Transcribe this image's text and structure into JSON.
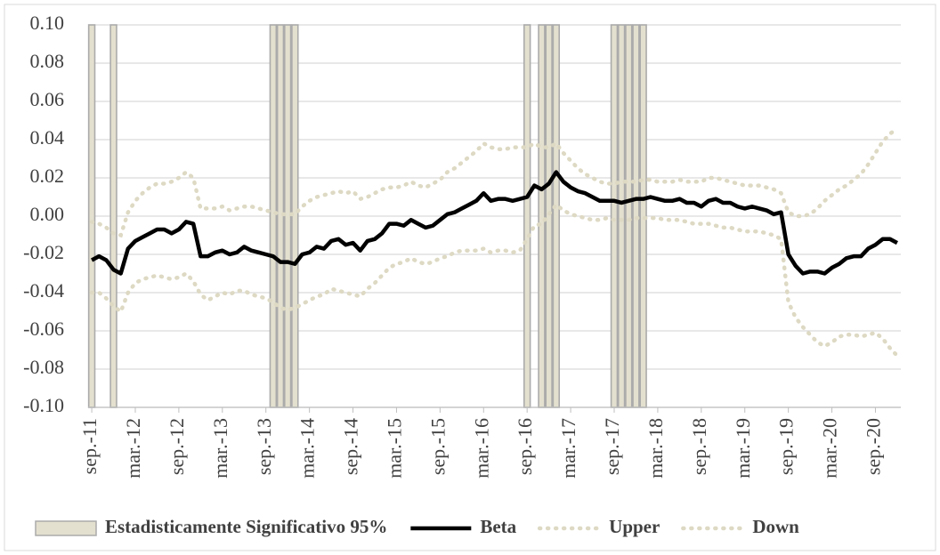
{
  "chart_data": {
    "type": "line",
    "categories": [
      "sep.-11",
      null,
      null,
      null,
      null,
      null,
      "mar.-12",
      null,
      null,
      null,
      null,
      null,
      "sep.-12",
      null,
      null,
      null,
      null,
      null,
      "mar.-13",
      null,
      null,
      null,
      null,
      null,
      "sep.-13",
      null,
      null,
      null,
      null,
      null,
      "mar.-14",
      null,
      null,
      null,
      null,
      null,
      "sep.-14",
      null,
      null,
      null,
      null,
      null,
      "mar.-15",
      null,
      null,
      null,
      null,
      null,
      "sep.-15",
      null,
      null,
      null,
      null,
      null,
      "mar.-16",
      null,
      null,
      null,
      null,
      null,
      "sep.-16",
      null,
      null,
      null,
      null,
      null,
      "mar.-17",
      null,
      null,
      null,
      null,
      null,
      "sep.-17",
      null,
      null,
      null,
      null,
      null,
      "mar.-18",
      null,
      null,
      null,
      null,
      null,
      "sep.-18",
      null,
      null,
      null,
      null,
      null,
      "mar.-19",
      null,
      null,
      null,
      null,
      null,
      "sep.-19",
      null,
      null,
      null,
      null,
      null,
      "mar.-20",
      null,
      null,
      null,
      null,
      null,
      "sep.-20",
      null,
      null,
      null
    ],
    "series": [
      {
        "name": "Estadisticamente Significativo 95%",
        "type": "bar",
        "color": "#e4e0cf",
        "stroke": "#ababab",
        "values": [
          0.1,
          null,
          null,
          0.1,
          null,
          null,
          null,
          null,
          null,
          null,
          null,
          null,
          null,
          null,
          null,
          null,
          null,
          null,
          null,
          null,
          null,
          null,
          null,
          null,
          null,
          0.1,
          0.1,
          0.1,
          0.1,
          null,
          null,
          null,
          null,
          null,
          null,
          null,
          null,
          null,
          null,
          null,
          null,
          null,
          null,
          null,
          null,
          null,
          null,
          null,
          null,
          null,
          null,
          null,
          null,
          null,
          null,
          null,
          null,
          null,
          null,
          null,
          0.1,
          null,
          0.1,
          0.1,
          0.1,
          null,
          null,
          null,
          null,
          null,
          null,
          null,
          0.1,
          0.1,
          0.1,
          0.1,
          0.1,
          null,
          null,
          null,
          null,
          null,
          null,
          null,
          null,
          null,
          null,
          null,
          null,
          null,
          null,
          null,
          null,
          null,
          null,
          null,
          null,
          null,
          null,
          null,
          null,
          null,
          null,
          null,
          null,
          null,
          null,
          null,
          null,
          null,
          null,
          null
        ]
      },
      {
        "name": "Beta",
        "type": "line",
        "color": "#000000",
        "style": "solid",
        "values": [
          -0.023,
          -0.021,
          -0.023,
          -0.028,
          -0.03,
          -0.017,
          -0.013,
          -0.011,
          -0.009,
          -0.007,
          -0.007,
          -0.009,
          -0.007,
          -0.003,
          -0.004,
          -0.021,
          -0.021,
          -0.019,
          -0.018,
          -0.02,
          -0.019,
          -0.016,
          -0.018,
          -0.019,
          -0.02,
          -0.021,
          -0.024,
          -0.024,
          -0.025,
          -0.02,
          -0.019,
          -0.016,
          -0.017,
          -0.013,
          -0.012,
          -0.015,
          -0.014,
          -0.018,
          -0.013,
          -0.012,
          -0.009,
          -0.004,
          -0.004,
          -0.005,
          -0.002,
          -0.004,
          -0.006,
          -0.005,
          -0.002,
          0.001,
          0.002,
          0.004,
          0.006,
          0.008,
          0.012,
          0.008,
          0.009,
          0.009,
          0.008,
          0.009,
          0.01,
          0.016,
          0.014,
          0.017,
          0.023,
          0.018,
          0.015,
          0.013,
          0.012,
          0.01,
          0.008,
          0.008,
          0.008,
          0.007,
          0.008,
          0.009,
          0.009,
          0.01,
          0.009,
          0.008,
          0.008,
          0.009,
          0.007,
          0.007,
          0.005,
          0.008,
          0.009,
          0.007,
          0.007,
          0.005,
          0.004,
          0.005,
          0.004,
          0.003,
          0.001,
          0.002,
          -0.02,
          -0.026,
          -0.03,
          -0.029,
          -0.029,
          -0.03,
          -0.027,
          -0.025,
          -0.022,
          -0.021,
          -0.021,
          -0.017,
          -0.015,
          -0.012,
          -0.012,
          -0.014
        ]
      },
      {
        "name": "Upper",
        "type": "line",
        "color": "#ddd9c3",
        "style": "dotted",
        "values": [
          -0.003,
          -0.004,
          -0.006,
          -0.009,
          -0.01,
          0.002,
          0.008,
          0.012,
          0.015,
          0.017,
          0.017,
          0.018,
          0.02,
          0.023,
          0.02,
          0.004,
          0.004,
          0.004,
          0.005,
          0.003,
          0.004,
          0.005,
          0.005,
          0.004,
          0.003,
          0.002,
          0.001,
          0.001,
          0.001,
          0.005,
          0.008,
          0.01,
          0.011,
          0.012,
          0.013,
          0.012,
          0.013,
          0.009,
          0.01,
          0.012,
          0.014,
          0.015,
          0.015,
          0.016,
          0.018,
          0.016,
          0.015,
          0.017,
          0.019,
          0.023,
          0.025,
          0.028,
          0.031,
          0.034,
          0.038,
          0.036,
          0.035,
          0.035,
          0.036,
          0.036,
          0.036,
          0.038,
          0.036,
          0.036,
          0.038,
          0.033,
          0.029,
          0.025,
          0.022,
          0.02,
          0.018,
          0.017,
          0.017,
          0.018,
          0.018,
          0.018,
          0.019,
          0.019,
          0.018,
          0.018,
          0.018,
          0.019,
          0.018,
          0.018,
          0.018,
          0.02,
          0.02,
          0.019,
          0.018,
          0.017,
          0.016,
          0.016,
          0.016,
          0.015,
          0.014,
          0.012,
          0.002,
          0.0,
          0.0,
          0.001,
          0.004,
          0.008,
          0.011,
          0.014,
          0.016,
          0.019,
          0.022,
          0.027,
          0.033,
          0.039,
          0.043,
          0.046
        ]
      },
      {
        "name": "Down",
        "type": "line",
        "color": "#ddd9c3",
        "style": "dotted",
        "values": [
          -0.04,
          -0.04,
          -0.043,
          -0.047,
          -0.05,
          -0.04,
          -0.035,
          -0.033,
          -0.032,
          -0.031,
          -0.032,
          -0.033,
          -0.032,
          -0.03,
          -0.034,
          -0.041,
          -0.044,
          -0.042,
          -0.04,
          -0.041,
          -0.039,
          -0.039,
          -0.041,
          -0.042,
          -0.043,
          -0.045,
          -0.048,
          -0.049,
          -0.048,
          -0.046,
          -0.044,
          -0.042,
          -0.041,
          -0.038,
          -0.039,
          -0.04,
          -0.041,
          -0.042,
          -0.038,
          -0.035,
          -0.031,
          -0.027,
          -0.025,
          -0.024,
          -0.022,
          -0.024,
          -0.025,
          -0.024,
          -0.022,
          -0.021,
          -0.019,
          -0.018,
          -0.018,
          -0.018,
          -0.017,
          -0.019,
          -0.018,
          -0.018,
          -0.019,
          -0.018,
          -0.012,
          -0.005,
          -0.004,
          0.001,
          0.006,
          0.003,
          0.001,
          0.0,
          -0.001,
          -0.002,
          -0.002,
          -0.001,
          -0.002,
          -0.002,
          -0.002,
          -0.001,
          -0.001,
          -0.001,
          -0.001,
          -0.002,
          -0.002,
          -0.002,
          -0.003,
          -0.004,
          -0.004,
          -0.004,
          -0.005,
          -0.006,
          -0.006,
          -0.007,
          -0.008,
          -0.008,
          -0.008,
          -0.009,
          -0.01,
          -0.012,
          -0.045,
          -0.053,
          -0.058,
          -0.062,
          -0.066,
          -0.068,
          -0.066,
          -0.063,
          -0.062,
          -0.062,
          -0.063,
          -0.062,
          -0.061,
          -0.064,
          -0.069,
          -0.073
        ]
      }
    ],
    "ylim": [
      -0.1,
      0.1
    ],
    "yticks": [
      {
        "value": 0.1,
        "label": "0.10"
      },
      {
        "value": 0.08,
        "label": "0.08"
      },
      {
        "value": 0.06,
        "label": "0.06"
      },
      {
        "value": 0.04,
        "label": "0.04"
      },
      {
        "value": 0.02,
        "label": "0.02"
      },
      {
        "value": 0,
        "label": "0.00"
      },
      {
        "value": -0.02,
        "label": "-0.02"
      },
      {
        "value": -0.04,
        "label": "-0.04"
      },
      {
        "value": -0.06,
        "label": "-0.06"
      },
      {
        "value": -0.08,
        "label": "-0.08"
      },
      {
        "value": -0.1,
        "label": "-0.10"
      }
    ],
    "grid": true,
    "legend": "bottom"
  }
}
